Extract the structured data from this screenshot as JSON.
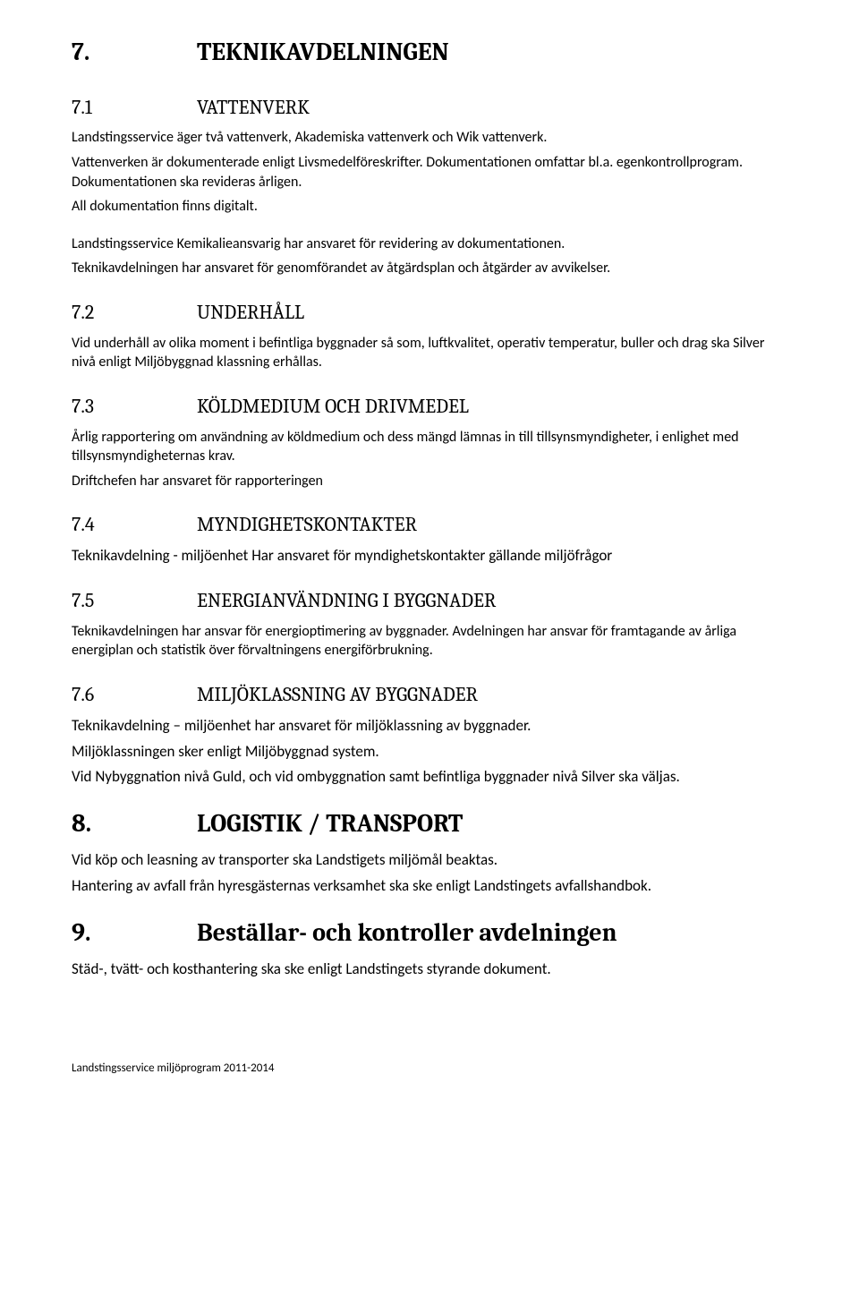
{
  "section7": {
    "number": "7.",
    "title": "TEKNIKAVDELNINGEN",
    "s71": {
      "number": "7.1",
      "title": "VATTENVERK",
      "p1": "Landstingsservice äger två vattenverk, Akademiska vattenverk och Wik vattenverk.",
      "p2": "Vattenverken är dokumenterade enligt Livsmedelföreskrifter. Dokumentationen omfattar bl.a. egenkontrollprogram. Dokumentationen ska revideras årligen.",
      "p3": "All dokumentation finns digitalt.",
      "p4": "Landstingsservice Kemikalieansvarig har ansvaret för revidering av dokumentationen.",
      "p5": "Teknikavdelningen har ansvaret för genomförandet av åtgärdsplan och åtgärder av avvikelser."
    },
    "s72": {
      "number": "7.2",
      "title": "UNDERHÅLL",
      "p1": "Vid underhåll av olika moment i befintliga byggnader så som, luftkvalitet, operativ temperatur, buller och drag ska Silver nivå enligt Miljöbyggnad klassning erhållas."
    },
    "s73": {
      "number": "7.3",
      "title": "KÖLDMEDIUM OCH DRIVMEDEL",
      "p1": "Årlig rapportering om användning av köldmedium och dess mängd lämnas in till tillsynsmyndigheter, i enlighet med tillsynsmyndigheternas krav.",
      "p2": "Driftchefen har ansvaret för rapporteringen"
    },
    "s74": {
      "number": "7.4",
      "title": "MYNDIGHETSKONTAKTER",
      "p1": "Teknikavdelning - miljöenhet Har ansvaret för myndighetskontakter gällande miljöfrågor"
    },
    "s75": {
      "number": "7.5",
      "title": "ENERGIANVÄNDNING I BYGGNADER",
      "p1": "Teknikavdelningen har ansvar för energioptimering av byggnader. Avdelningen har ansvar för framtagande av årliga energiplan och statistik över förvaltningens energiförbrukning."
    },
    "s76": {
      "number": "7.6",
      "title": "MILJÖKLASSNING AV BYGGNADER",
      "p1": "Teknikavdelning – miljöenhet har ansvaret för miljöklassning av byggnader.",
      "p2": "Miljöklassningen sker enligt Miljöbyggnad system.",
      "p3": "Vid Nybyggnation nivå Guld, och vid ombyggnation samt befintliga byggnader nivå Silver ska väljas."
    }
  },
  "section8": {
    "number": "8.",
    "title": "LOGISTIK / TRANSPORT",
    "p1": "Vid köp och leasning av transporter ska Landstigets miljömål beaktas.",
    "p2": "Hantering av avfall från hyresgästernas verksamhet ska ske enligt Landstingets avfallshandbok."
  },
  "section9": {
    "number": "9.",
    "title": "Beställar- och kontroller avdelningen",
    "p1": "Städ-, tvätt- och kosthantering ska ske enligt Landstingets styrande dokument."
  },
  "footer": "Landstingsservice miljöprogram 2011-2014"
}
